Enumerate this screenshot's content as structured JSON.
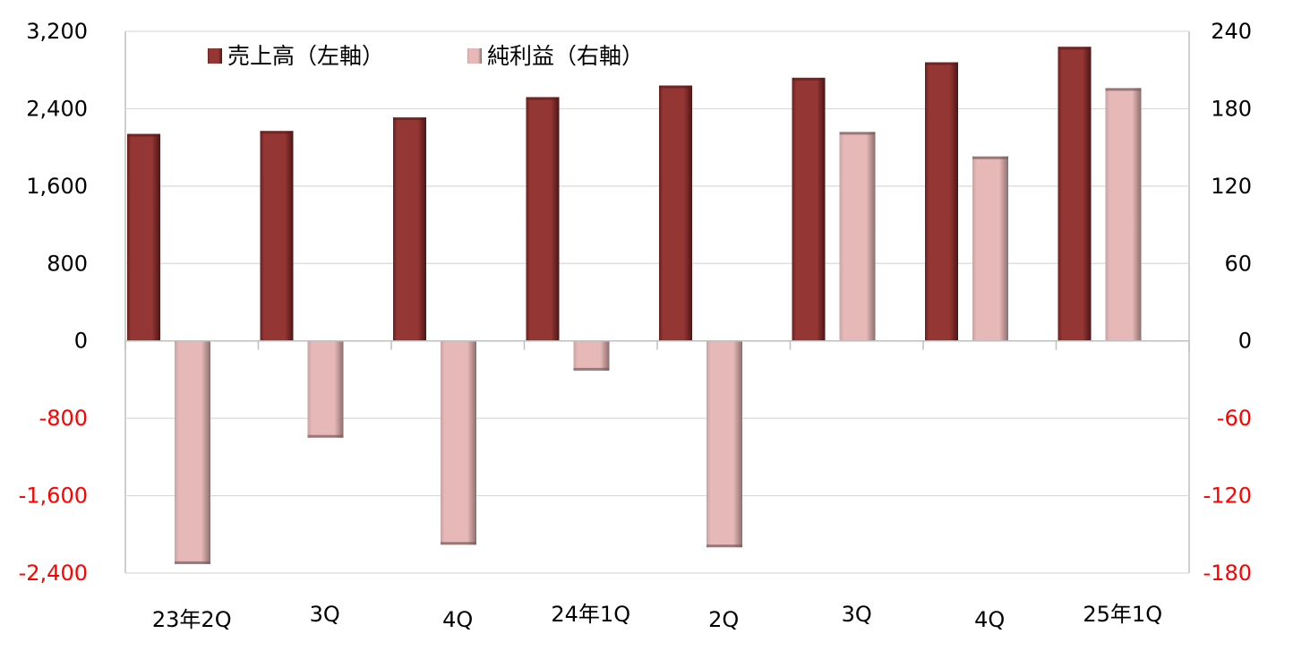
{
  "chart_data": {
    "type": "bar",
    "categories": [
      "23年2Q",
      "3Q",
      "4Q",
      "24年1Q",
      "2Q",
      "3Q",
      "4Q",
      "25年1Q"
    ],
    "series": [
      {
        "name": "売上高（左軸）",
        "axis": "left",
        "color": "#943634",
        "values": [
          2140,
          2170,
          2310,
          2520,
          2640,
          2720,
          2880,
          3040
        ]
      },
      {
        "name": "純利益（右軸）",
        "axis": "right",
        "color": "#e6b9b8",
        "values": [
          -173,
          -75,
          -158,
          -23,
          -160,
          162,
          143,
          196
        ]
      }
    ],
    "left_axis": {
      "min": -2400,
      "max": 3200,
      "step": 800,
      "tick_labels": [
        "3,200",
        "2,400",
        "1,600",
        "800",
        "0",
        "-800",
        "-1,600",
        "-2,400"
      ]
    },
    "right_axis": {
      "min": -180,
      "max": 240,
      "step": 60,
      "tick_labels": [
        "240",
        "180",
        "120",
        "60",
        "0",
        "-60",
        "-120",
        "-180"
      ]
    },
    "negative_label_color": "#ff0000",
    "grid": true,
    "legend_position": "top-left"
  }
}
